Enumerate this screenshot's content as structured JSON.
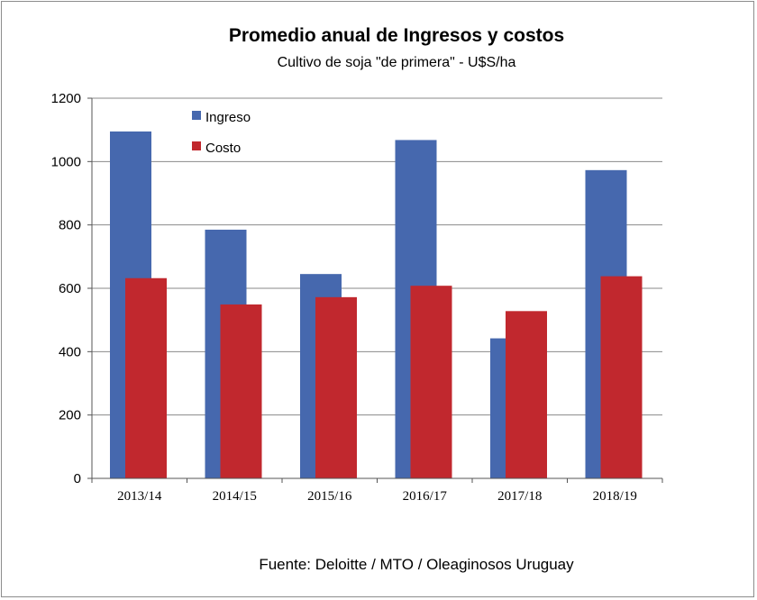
{
  "chart_data": {
    "type": "bar",
    "title": "Promedio anual de Ingresos y costos",
    "subtitle": "Cultivo de soja \"de primera\" - U$S/ha",
    "categories": [
      "2013/14",
      "2014/15",
      "2015/16",
      "2016/17",
      "2017/18",
      "2018/19"
    ],
    "series": [
      {
        "name": "Ingreso",
        "color": "#4668AE",
        "values": [
          1095,
          785,
          645,
          1068,
          442,
          973
        ]
      },
      {
        "name": "Costo",
        "color": "#C1282E",
        "values": [
          632,
          549,
          572,
          608,
          528,
          638
        ]
      }
    ],
    "ylim": [
      0,
      1200
    ],
    "yticks": [
      "0",
      "200",
      "400",
      "600",
      "800",
      "1000",
      "1200"
    ],
    "ytick_values": [
      0,
      200,
      400,
      600,
      800,
      1000,
      1200
    ],
    "xlabel": "",
    "ylabel": "",
    "grid": true,
    "legend_position": "top-left",
    "source": "Fuente:  Deloitte / MTO / Oleaginosos Uruguay"
  }
}
